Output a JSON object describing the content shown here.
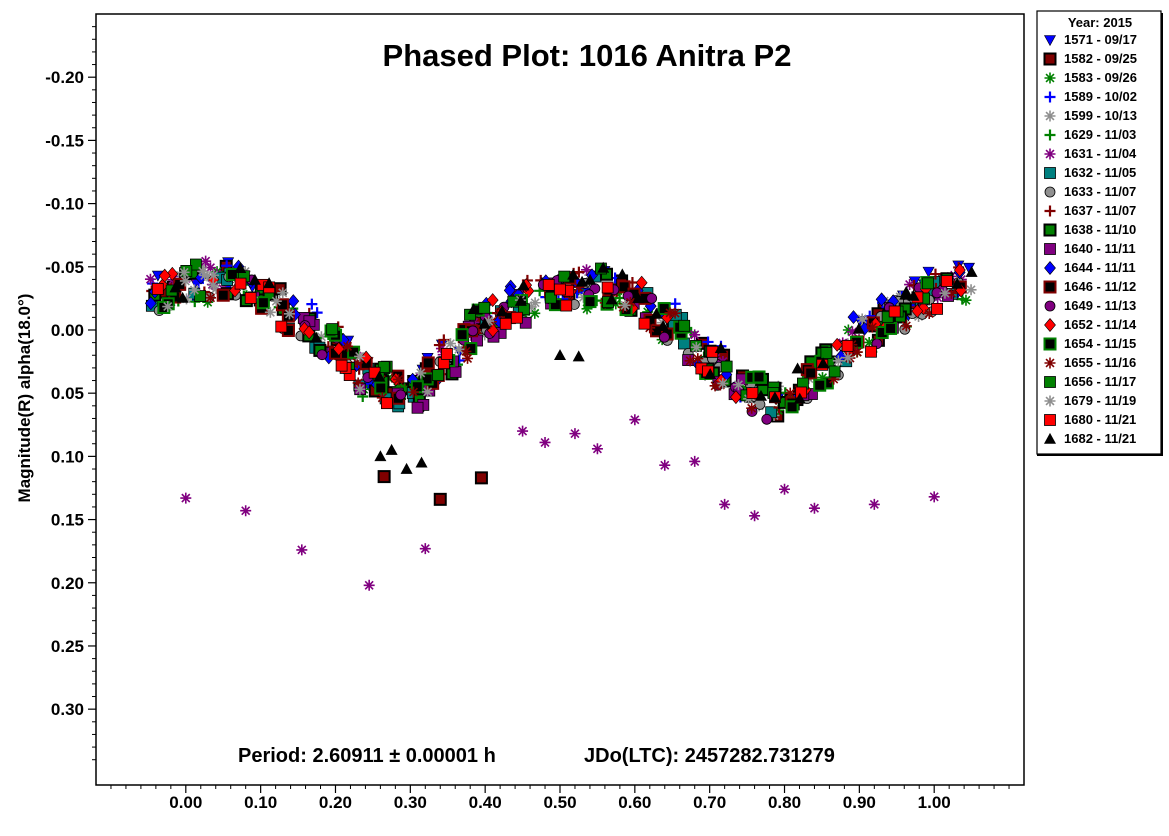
{
  "chart_data": {
    "type": "scatter",
    "title": "Phased Plot: 1016 Anitra P2",
    "ylabel": "Magnitude(R) alpha(18.0°)",
    "xlabel": "",
    "xlim": [
      -0.12,
      1.12
    ],
    "ylim": [
      0.36,
      -0.25
    ],
    "y_inverted": true,
    "grid": false,
    "x_ticks": [
      0.0,
      0.1,
      0.2,
      0.3,
      0.4,
      0.5,
      0.6,
      0.7,
      0.8,
      0.9,
      1.0
    ],
    "x_tick_labels": [
      "0.00",
      "0.10",
      "0.20",
      "0.30",
      "0.40",
      "0.50",
      "0.60",
      "0.70",
      "0.80",
      "0.90",
      "1.00"
    ],
    "y_ticks": [
      -0.2,
      -0.15,
      -0.1,
      -0.05,
      0.0,
      0.05,
      0.1,
      0.15,
      0.2,
      0.25,
      0.3
    ],
    "y_tick_labels": [
      "-0.20",
      "-0.15",
      "-0.10",
      "-0.05",
      "0.00",
      "0.05",
      "0.10",
      "0.15",
      "0.20",
      "0.25",
      "0.30"
    ],
    "footer_period": "Period: 2.60911 ± 0.00001 h",
    "footer_jd": "JDo(LTC): 2457282.731279",
    "legend_title": "Year: 2015",
    "legend_position": "right, outside plot",
    "lightcurve": {
      "phase": [
        -0.05,
        0.0,
        0.05,
        0.1,
        0.15,
        0.2,
        0.25,
        0.3,
        0.35,
        0.4,
        0.45,
        0.5,
        0.55,
        0.6,
        0.65,
        0.7,
        0.75,
        0.8,
        0.85,
        0.9,
        0.95,
        1.0,
        1.05
      ],
      "mag": [
        -0.025,
        -0.035,
        -0.04,
        -0.03,
        -0.01,
        0.015,
        0.04,
        0.05,
        0.025,
        -0.005,
        -0.022,
        -0.03,
        -0.032,
        -0.025,
        -0.005,
        0.025,
        0.05,
        0.055,
        0.03,
        0.005,
        -0.015,
        -0.03,
        -0.04
      ]
    },
    "outliers_1631": {
      "x": [
        0.0,
        0.08,
        0.155,
        0.245,
        0.32,
        0.45,
        0.48,
        0.52,
        0.55,
        0.6,
        0.64,
        0.68,
        0.72,
        0.76,
        0.8,
        0.84,
        0.92,
        1.0
      ],
      "y": [
        0.133,
        0.143,
        0.174,
        0.202,
        0.173,
        0.08,
        0.089,
        0.082,
        0.094,
        0.071,
        0.107,
        0.104,
        0.138,
        0.147,
        0.126,
        0.141,
        0.138,
        0.132
      ]
    },
    "extra_1582": {
      "x": [
        0.265,
        0.34,
        0.395
      ],
      "y": [
        0.116,
        0.134,
        0.117
      ]
    },
    "extra_1682": {
      "x": [
        0.26,
        0.275,
        0.295,
        0.315,
        0.5,
        0.525
      ],
      "y": [
        0.1,
        0.095,
        0.11,
        0.105,
        0.02,
        0.021
      ]
    },
    "series": [
      {
        "name": "1571 - 09/17",
        "marker": "triangle-down",
        "color": "#0000ff",
        "fill": true
      },
      {
        "name": "1582 - 09/25",
        "marker": "square",
        "color": "#800000",
        "fill": true,
        "edge": "#000000"
      },
      {
        "name": "1583 - 09/26",
        "marker": "asterisk",
        "color": "#008000",
        "fill": false
      },
      {
        "name": "1589 - 10/02",
        "marker": "plus",
        "color": "#0000ff",
        "fill": false
      },
      {
        "name": "1599 - 10/13",
        "marker": "asterisk",
        "color": "#909090",
        "fill": false
      },
      {
        "name": "1629 - 11/03",
        "marker": "plus",
        "color": "#008000",
        "fill": false
      },
      {
        "name": "1631 - 11/04",
        "marker": "asterisk",
        "color": "#800080",
        "fill": false
      },
      {
        "name": "1632 - 11/05",
        "marker": "square",
        "color": "#008080",
        "fill": true
      },
      {
        "name": "1633 - 11/07",
        "marker": "circle",
        "color": "#909090",
        "fill": true
      },
      {
        "name": "1637 - 11/07",
        "marker": "plus",
        "color": "#800000",
        "fill": false
      },
      {
        "name": "1638 - 11/10",
        "marker": "square",
        "color": "#008000",
        "fill": true,
        "edge": "#000000"
      },
      {
        "name": "1640 - 11/11",
        "marker": "square",
        "color": "#800080",
        "fill": true
      },
      {
        "name": "1644 - 11/11",
        "marker": "diamond",
        "color": "#0000ff",
        "fill": true
      },
      {
        "name": "1646 - 11/12",
        "marker": "square",
        "color": "#000000",
        "fill": true,
        "edge": "#800000"
      },
      {
        "name": "1649 - 11/13",
        "marker": "circle",
        "color": "#800080",
        "fill": true
      },
      {
        "name": "1652 - 11/14",
        "marker": "diamond",
        "color": "#ff0000",
        "fill": true
      },
      {
        "name": "1654 - 11/15",
        "marker": "square",
        "color": "#000000",
        "fill": true,
        "edge": "#008000"
      },
      {
        "name": "1655 - 11/16",
        "marker": "asterisk",
        "color": "#800000",
        "fill": false
      },
      {
        "name": "1656 - 11/17",
        "marker": "square",
        "color": "#008000",
        "fill": true
      },
      {
        "name": "1679 - 11/19",
        "marker": "asterisk",
        "color": "#909090",
        "fill": false
      },
      {
        "name": "1680 - 11/21",
        "marker": "square",
        "color": "#ff0000",
        "fill": true
      },
      {
        "name": "1682 - 11/21",
        "marker": "triangle-up",
        "color": "#000000",
        "fill": true
      }
    ]
  }
}
